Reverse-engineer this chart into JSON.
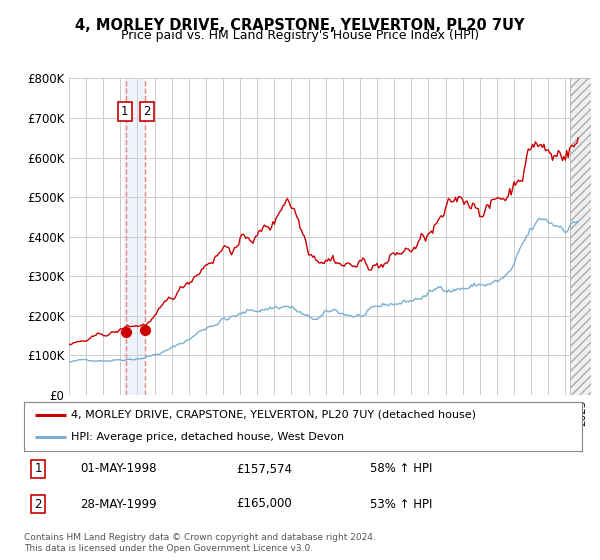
{
  "title": "4, MORLEY DRIVE, CRAPSTONE, YELVERTON, PL20 7UY",
  "subtitle": "Price paid vs. HM Land Registry's House Price Index (HPI)",
  "figsize": [
    6.0,
    5.6
  ],
  "dpi": 100,
  "ylim": [
    0,
    800000
  ],
  "yticks": [
    0,
    100000,
    200000,
    300000,
    400000,
    500000,
    600000,
    700000,
    800000
  ],
  "ytick_labels": [
    "£0",
    "£100K",
    "£200K",
    "£300K",
    "£400K",
    "£500K",
    "£600K",
    "£700K",
    "£800K"
  ],
  "xlim_start": 1995.0,
  "xlim_end": 2025.5,
  "transaction1": {
    "date": 1998.33,
    "price": 157574,
    "label": "1",
    "display": "01-MAY-1998",
    "amount": "£157,574",
    "hpi": "58% ↑ HPI"
  },
  "transaction2": {
    "date": 1999.42,
    "price": 165000,
    "label": "2",
    "display": "28-MAY-1999",
    "amount": "£165,000",
    "hpi": "53% ↑ HPI"
  },
  "red_line_color": "#cc0000",
  "blue_line_color": "#7ab0d4",
  "vline_color": "#ee8888",
  "vline_shade_color": "#ccddf5",
  "background_color": "#ffffff",
  "grid_color": "#cccccc",
  "legend_label_red": "4, MORLEY DRIVE, CRAPSTONE, YELVERTON, PL20 7UY (detached house)",
  "legend_label_blue": "HPI: Average price, detached house, West Devon",
  "footer": "Contains HM Land Registry data © Crown copyright and database right 2024.\nThis data is licensed under the Open Government Licence v3.0.",
  "shade_start_year": 2024.25,
  "shade_end_year": 2025.5
}
